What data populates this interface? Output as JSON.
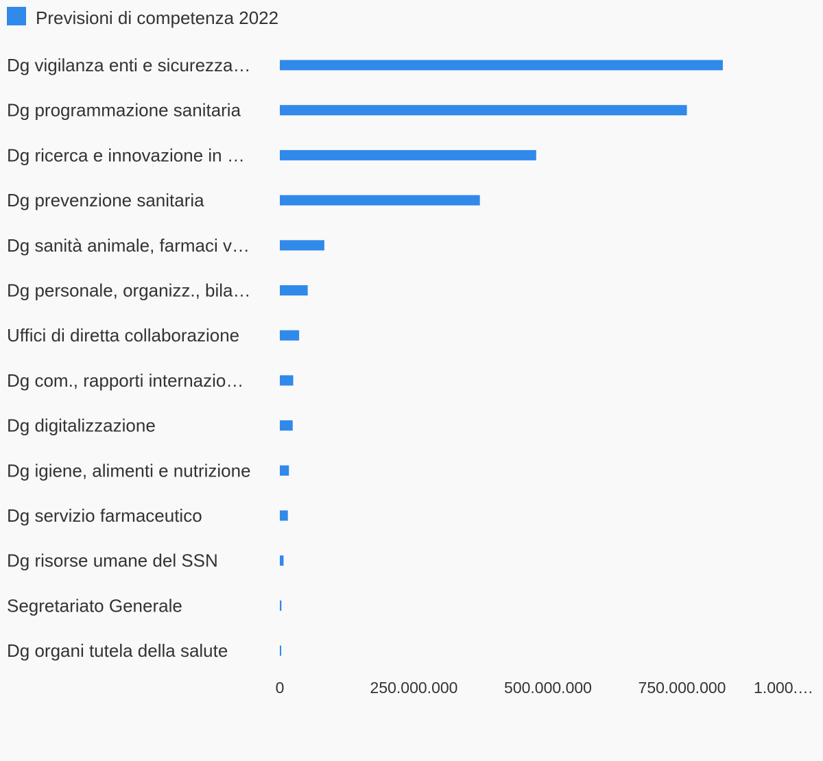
{
  "legend": {
    "label": "Previsioni di competenza 2022",
    "color": "#3189ea"
  },
  "chart_data": {
    "type": "bar",
    "orientation": "horizontal",
    "categories": [
      "Dg vigilanza enti e sicurezza…",
      "Dg programmazione sanitaria",
      "Dg ricerca e innovazione in …",
      "Dg prevenzione sanitaria",
      "Dg sanità animale, farmaci v…",
      "Dg personale, organizz., bila…",
      "Uffici di diretta collaborazione",
      "Dg com., rapporti internazio…",
      "Dg digitalizzazione",
      "Dg igiene, alimenti e nutrizione",
      "Dg servizio farmaceutico",
      "Dg risorse umane del SSN",
      "Segretariato Generale",
      "Dg organi tutela della salute"
    ],
    "series": [
      {
        "name": "Previsioni di competenza 2022",
        "values": [
          826000000,
          759000000,
          478000000,
          373000000,
          83000000,
          52000000,
          36000000,
          25000000,
          24000000,
          17000000,
          15000000,
          7000000,
          3000000,
          1500000
        ]
      }
    ],
    "xlim": [
      0,
      1000000000
    ],
    "xticks": [
      "0",
      "250.000.000",
      "500.000.000",
      "750.000.000",
      "1.000.…"
    ],
    "legend_position": "top-left",
    "grid": false,
    "color": "#3189ea"
  }
}
